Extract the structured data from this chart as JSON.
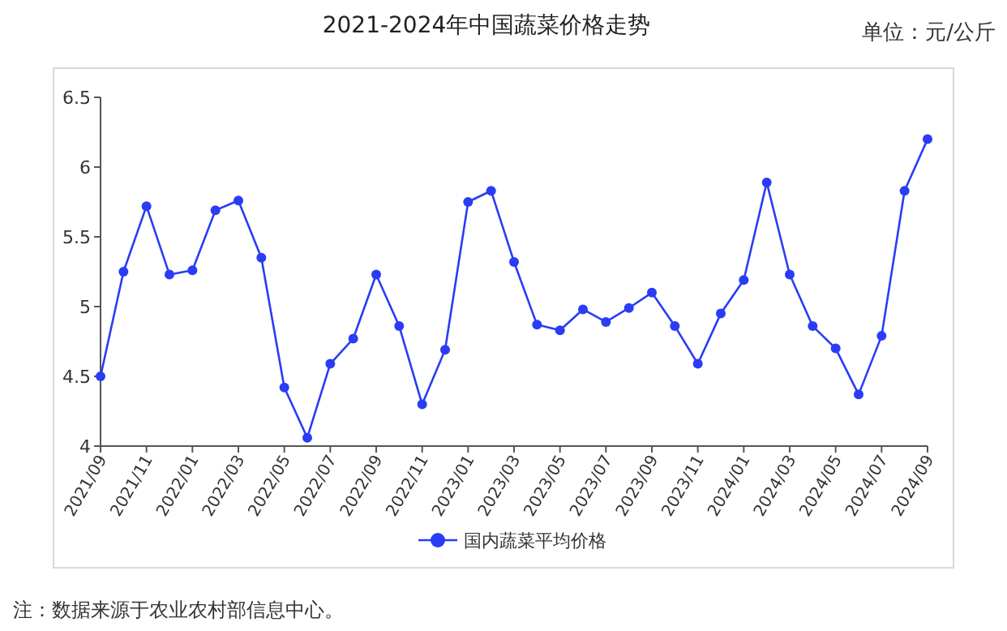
{
  "chart_data": {
    "type": "line",
    "title": "2021-2024年中国蔬菜价格走势",
    "annotations": [
      "单位：元/公斤",
      "注：数据来源于农业农村部信息中心。"
    ],
    "categories": [
      "2021/09",
      null,
      "2021/11",
      null,
      "2022/01",
      null,
      "2022/03",
      null,
      "2022/05",
      null,
      "2022/07",
      null,
      "2022/09",
      null,
      "2022/11",
      null,
      "2023/01",
      null,
      "2023/03",
      null,
      "2023/05",
      null,
      "2023/07",
      null,
      "2023/09",
      null,
      "2023/11",
      null,
      "2024/01",
      null,
      "2024/03",
      null,
      "2024/05",
      null,
      "2024/07",
      null,
      "2024/09"
    ],
    "series": [
      {
        "name": "国内蔬菜平均价格",
        "color": "#2a3cf5",
        "values": [
          4.5,
          5.25,
          5.72,
          5.23,
          5.26,
          5.69,
          5.76,
          5.35,
          4.42,
          4.06,
          4.59,
          4.77,
          5.23,
          4.86,
          4.3,
          4.69,
          5.75,
          5.83,
          5.32,
          4.87,
          4.83,
          4.98,
          4.89,
          4.99,
          5.1,
          4.86,
          4.59,
          4.95,
          5.19,
          5.89,
          5.23,
          4.86,
          4.7,
          4.37,
          4.79,
          5.83,
          6.2
        ]
      }
    ],
    "ylim": [
      4,
      6.5
    ],
    "yticks": [
      4,
      4.5,
      5,
      5.5,
      6,
      6.5
    ],
    "marker": "circle",
    "legend": "bottom",
    "grid": false
  }
}
